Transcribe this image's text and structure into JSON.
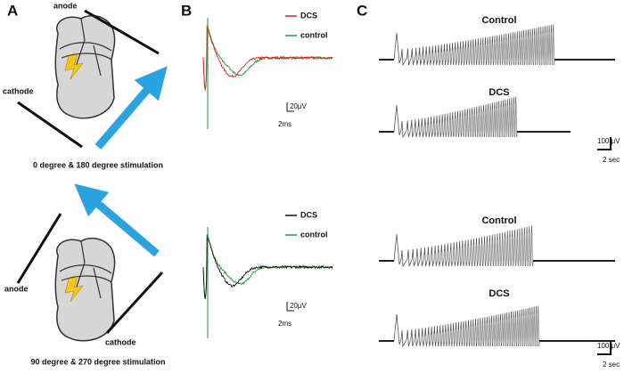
{
  "panel_a": {
    "label": "A",
    "top": {
      "anode": "anode",
      "cathode": "cathode",
      "caption": "0 degree & 180 degree stimulation"
    },
    "bottom": {
      "anode": "anode",
      "cathode": "cathode",
      "caption": "90 degree & 270 degree stimulation"
    }
  },
  "panel_b": {
    "label": "B",
    "top": {
      "legend": [
        {
          "name": "DCS",
          "color": "#e02020"
        },
        {
          "name": "control",
          "color": "#1f9a35"
        }
      ],
      "scale_y": "20μV",
      "scale_x": "2ms"
    },
    "bottom": {
      "legend": [
        {
          "name": "DCS",
          "color": "#111111"
        },
        {
          "name": "control",
          "color": "#1f9a35"
        }
      ],
      "scale_y": "20μV",
      "scale_x": "2ms"
    }
  },
  "panel_c": {
    "label": "C",
    "top": {
      "traces": [
        {
          "title": "Control"
        },
        {
          "title": "DCS"
        }
      ],
      "scale_y": "100 μV",
      "scale_x": "2 sec"
    },
    "bottom": {
      "traces": [
        {
          "title": "Control"
        },
        {
          "title": "DCS"
        }
      ],
      "scale_y": "100 μV",
      "scale_x": "2 sec"
    }
  }
}
